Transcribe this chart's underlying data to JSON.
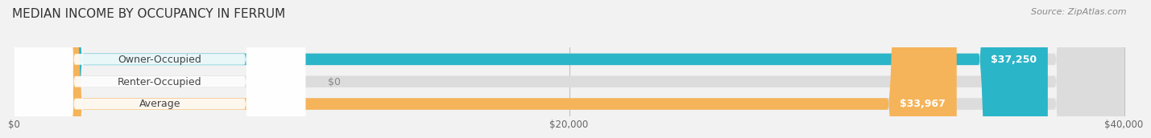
{
  "title": "MEDIAN INCOME BY OCCUPANCY IN FERRUM",
  "source": "Source: ZipAtlas.com",
  "categories": [
    "Owner-Occupied",
    "Renter-Occupied",
    "Average"
  ],
  "values": [
    37250,
    0,
    33967
  ],
  "bar_colors": [
    "#2bb5c8",
    "#b89cc8",
    "#f5b45a"
  ],
  "value_labels": [
    "$37,250",
    "$0",
    "$33,967"
  ],
  "xlim": [
    0,
    40000
  ],
  "xticks": [
    0,
    20000,
    40000
  ],
  "xtick_labels": [
    "$0",
    "$20,000",
    "$40,000"
  ],
  "title_fontsize": 11,
  "source_fontsize": 8,
  "label_fontsize": 9,
  "value_fontsize": 9,
  "bar_height": 0.52,
  "background_color": "#f2f2f2"
}
